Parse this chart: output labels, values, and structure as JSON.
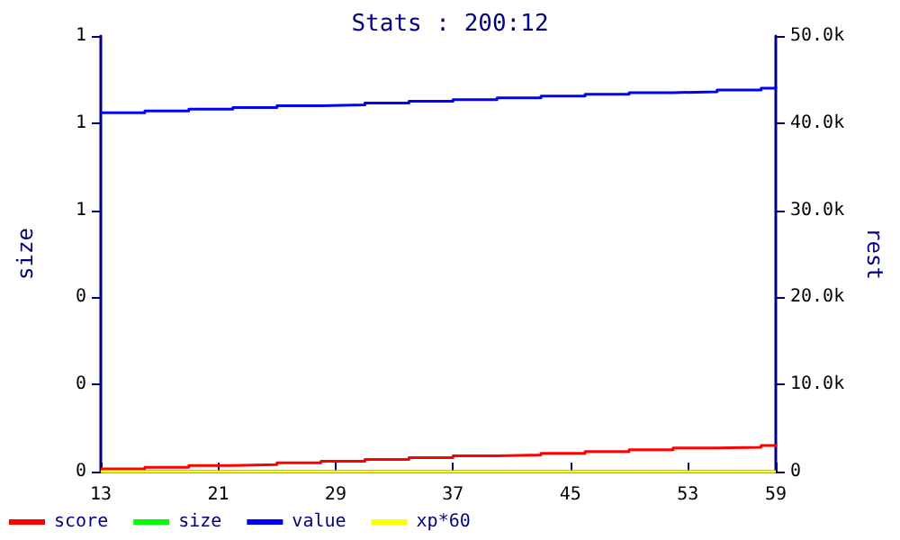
{
  "chart_data": {
    "type": "step",
    "title": "Stats : 200:12",
    "ylabel": "size",
    "y2label": "rest",
    "x": [
      13,
      16,
      19,
      22,
      25,
      28,
      31,
      34,
      37,
      40,
      43,
      46,
      49,
      52,
      55,
      58,
      59
    ],
    "xlim": [
      13,
      59
    ],
    "xticks": [
      13,
      21,
      29,
      37,
      45,
      53,
      59
    ],
    "ylim": [
      0,
      1
    ],
    "yticks": [
      0,
      {
        "value": 0.2,
        "label": "0"
      },
      {
        "value": 0.4,
        "label": "0"
      },
      {
        "value": 0.6,
        "label": "1"
      },
      {
        "value": 0.8,
        "label": "1"
      },
      1
    ],
    "y2lim": [
      0,
      50000
    ],
    "y2ticks": [
      0,
      {
        "value": 10000,
        "label": "10.0k"
      },
      {
        "value": 20000,
        "label": "20.0k"
      },
      {
        "value": 30000,
        "label": "30.0k"
      },
      {
        "value": 40000,
        "label": "40.0k"
      },
      {
        "value": 50000,
        "label": "50.0k"
      }
    ],
    "series": [
      {
        "name": "score",
        "color": "#ff0000",
        "axis": "y2",
        "values": [
          300,
          500,
          700,
          800,
          1000,
          1200,
          1400,
          1600,
          1800,
          1900,
          2100,
          2300,
          2500,
          2700,
          2800,
          3000,
          3200
        ]
      },
      {
        "name": "size",
        "color": "#00ff00",
        "values": [
          null,
          null,
          null,
          null,
          null,
          null,
          null,
          null,
          null,
          null,
          null,
          null,
          null,
          null,
          null,
          null,
          null
        ]
      },
      {
        "name": "value",
        "color": "#0000ff",
        "axis": "y2",
        "values": [
          41200,
          41400,
          41600,
          41800,
          42000,
          42100,
          42300,
          42500,
          42700,
          42900,
          43100,
          43300,
          43500,
          43600,
          43800,
          44000,
          44200
        ]
      },
      {
        "name": "xp*60",
        "color": "#ffff00",
        "axis": "y2",
        "values": [
          0,
          0,
          0,
          0,
          0,
          0,
          0,
          0,
          0,
          0,
          0,
          0,
          0,
          0,
          0,
          0,
          0
        ]
      }
    ],
    "legend": "bottom left",
    "grid": false,
    "marker": "none",
    "line_style": "solid"
  }
}
